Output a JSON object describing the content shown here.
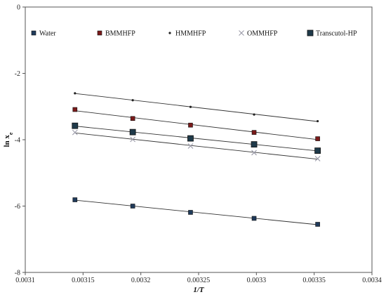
{
  "chart_data": {
    "type": "scatter",
    "title": "",
    "xlabel": "1/T",
    "ylabel": "ln x",
    "ylabel_sub": "e",
    "xlim": [
      0.0031,
      0.0034
    ],
    "ylim": [
      -8,
      0
    ],
    "x_ticks": [
      0.0031,
      0.00315,
      0.0032,
      0.00325,
      0.0033,
      0.00335,
      0.0034
    ],
    "x_tick_labels": [
      "0.0031",
      "0.00315",
      "0.0032",
      "0.00325",
      "0.0033",
      "0.00335",
      "0.0034"
    ],
    "y_ticks": [
      -8,
      -6,
      -4,
      -2,
      0
    ],
    "y_tick_labels": [
      "-8",
      "-6",
      "-4",
      "-2",
      "0"
    ],
    "grid": false,
    "legend_position": "top",
    "fit_lines": true,
    "series": [
      {
        "name": "Water",
        "marker": "square",
        "color": "#1f3a5a",
        "x": [
          0.003143,
          0.003193,
          0.003243,
          0.003298,
          0.003353
        ],
        "y": [
          -5.81,
          -6.0,
          -6.19,
          -6.37,
          -6.55
        ]
      },
      {
        "name": "BMMHFP",
        "marker": "square",
        "color": "#7a1a1a",
        "x": [
          0.003143,
          0.003193,
          0.003243,
          0.003298,
          0.003353
        ],
        "y": [
          -3.09,
          -3.36,
          -3.56,
          -3.78,
          -3.97
        ]
      },
      {
        "name": "HMMHFP",
        "marker": "dot",
        "color": "#222222",
        "x": [
          0.003143,
          0.003193,
          0.003243,
          0.003298,
          0.003353
        ],
        "y": [
          -2.6,
          -2.81,
          -3.01,
          -3.24,
          -3.44
        ]
      },
      {
        "name": "OMMHFP",
        "marker": "x",
        "color": "#9a9aa8",
        "x": [
          0.003143,
          0.003193,
          0.003243,
          0.003298,
          0.003353
        ],
        "y": [
          -3.78,
          -3.99,
          -4.19,
          -4.39,
          -4.57
        ]
      },
      {
        "name": "Transcutol-HP",
        "marker": "square-large",
        "color": "#1f3a4a",
        "x": [
          0.003143,
          0.003193,
          0.003243,
          0.003298,
          0.003353
        ],
        "y": [
          -3.58,
          -3.77,
          -3.96,
          -4.14,
          -4.33
        ]
      }
    ]
  }
}
